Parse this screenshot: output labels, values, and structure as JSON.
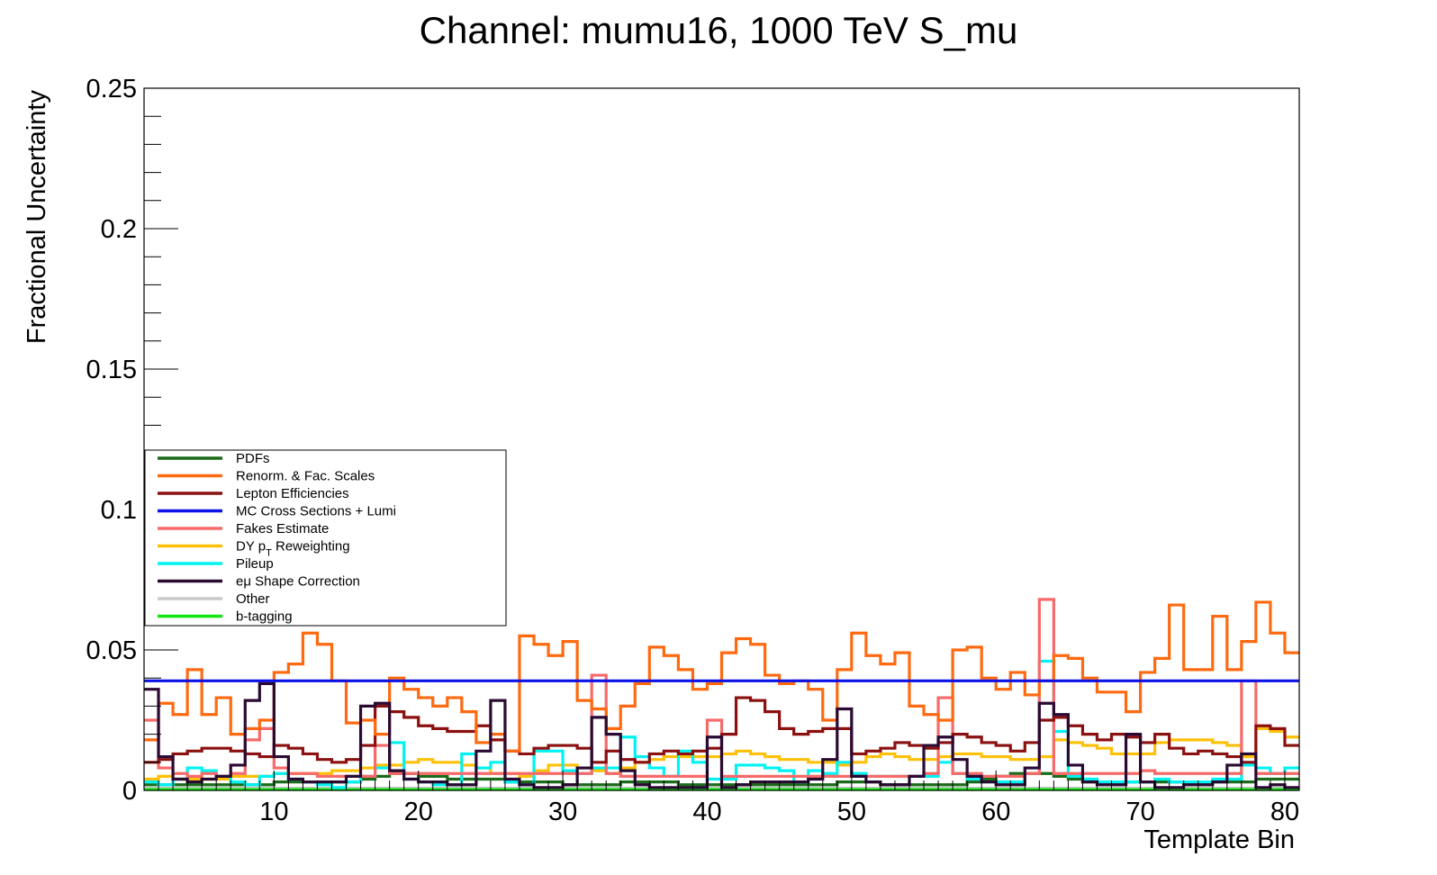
{
  "chart_data": {
    "type": "line",
    "title": "Channel: mumu16, 1000 TeV S_mu",
    "xlabel": "Template Bin",
    "ylabel": "Fractional Uncertainty",
    "xlim": [
      1,
      81
    ],
    "ylim": [
      0,
      0.25
    ],
    "x_ticks": [
      10,
      20,
      30,
      40,
      50,
      60,
      70,
      80
    ],
    "x_tick_labels": [
      "10",
      "20",
      "30",
      "40",
      "50",
      "60",
      "70",
      "80"
    ],
    "y_ticks": [
      0,
      0.05,
      0.1,
      0.15,
      0.2,
      0.25
    ],
    "y_tick_labels": [
      "0",
      "0.05",
      "0.1",
      "0.15",
      "0.2",
      "0.25"
    ],
    "grid": false,
    "legend_position": "left",
    "series": [
      {
        "name": "PDFs",
        "color": "#1a6b1a",
        "values": [
          0.002,
          0.002,
          0.002,
          0.002,
          0.002,
          0.002,
          0.002,
          0.002,
          0.002,
          0.003,
          0.003,
          0.003,
          0.003,
          0.003,
          0.003,
          0.004,
          0.005,
          0.006,
          0.006,
          0.005,
          0.005,
          0.004,
          0.004,
          0.004,
          0.004,
          0.003,
          0.003,
          0.003,
          0.003,
          0.002,
          0.002,
          0.002,
          0.002,
          0.003,
          0.003,
          0.003,
          0.003,
          0.002,
          0.002,
          0.002,
          0.002,
          0.002,
          0.002,
          0.002,
          0.002,
          0.002,
          0.002,
          0.002,
          0.003,
          0.003,
          0.003,
          0.002,
          0.002,
          0.002,
          0.002,
          0.002,
          0.002,
          0.003,
          0.004,
          0.005,
          0.006,
          0.006,
          0.006,
          0.005,
          0.004,
          0.003,
          0.003,
          0.003,
          0.003,
          0.003,
          0.003,
          0.003,
          0.003,
          0.003,
          0.003,
          0.003,
          0.003,
          0.004,
          0.004,
          0.004
        ]
      },
      {
        "name": "Renorm. & Fac. Scales",
        "color": "#ff6a10",
        "values": [
          0.018,
          0.031,
          0.027,
          0.043,
          0.027,
          0.033,
          0.02,
          0.022,
          0.025,
          0.042,
          0.045,
          0.056,
          0.052,
          0.039,
          0.024,
          0.025,
          0.02,
          0.04,
          0.036,
          0.033,
          0.03,
          0.033,
          0.028,
          0.017,
          0.02,
          0.014,
          0.055,
          0.052,
          0.048,
          0.053,
          0.032,
          0.029,
          0.022,
          0.03,
          0.038,
          0.051,
          0.048,
          0.043,
          0.036,
          0.038,
          0.049,
          0.054,
          0.052,
          0.041,
          0.038,
          0.039,
          0.036,
          0.025,
          0.043,
          0.056,
          0.048,
          0.045,
          0.049,
          0.03,
          0.027,
          0.025,
          0.05,
          0.051,
          0.04,
          0.036,
          0.042,
          0.034,
          0.039,
          0.048,
          0.047,
          0.04,
          0.035,
          0.035,
          0.028,
          0.042,
          0.047,
          0.066,
          0.043,
          0.043,
          0.062,
          0.043,
          0.053,
          0.067,
          0.056,
          0.049
        ]
      },
      {
        "name": "Lepton Efficiencies",
        "color": "#8b1010",
        "values": [
          0.01,
          0.011,
          0.013,
          0.014,
          0.015,
          0.015,
          0.014,
          0.013,
          0.012,
          0.016,
          0.015,
          0.013,
          0.011,
          0.01,
          0.011,
          0.016,
          0.03,
          0.028,
          0.026,
          0.023,
          0.022,
          0.021,
          0.021,
          0.023,
          0.018,
          0.014,
          0.013,
          0.015,
          0.016,
          0.016,
          0.015,
          0.01,
          0.014,
          0.011,
          0.01,
          0.013,
          0.014,
          0.013,
          0.014,
          0.015,
          0.02,
          0.033,
          0.032,
          0.028,
          0.022,
          0.02,
          0.021,
          0.022,
          0.022,
          0.013,
          0.014,
          0.015,
          0.017,
          0.016,
          0.015,
          0.017,
          0.02,
          0.019,
          0.017,
          0.016,
          0.014,
          0.017,
          0.025,
          0.026,
          0.023,
          0.02,
          0.018,
          0.02,
          0.019,
          0.017,
          0.02,
          0.015,
          0.013,
          0.014,
          0.013,
          0.012,
          0.01,
          0.023,
          0.022,
          0.016
        ]
      },
      {
        "name": "MC Cross Sections + Lumi",
        "color": "#0a12e6",
        "values": [
          0.039,
          0.039,
          0.039,
          0.039,
          0.039,
          0.039,
          0.039,
          0.039,
          0.039,
          0.039,
          0.039,
          0.039,
          0.039,
          0.039,
          0.039,
          0.039,
          0.039,
          0.039,
          0.039,
          0.039,
          0.039,
          0.039,
          0.039,
          0.039,
          0.039,
          0.039,
          0.039,
          0.039,
          0.039,
          0.039,
          0.039,
          0.039,
          0.039,
          0.039,
          0.039,
          0.039,
          0.039,
          0.039,
          0.039,
          0.039,
          0.039,
          0.039,
          0.039,
          0.039,
          0.039,
          0.039,
          0.039,
          0.039,
          0.039,
          0.039,
          0.039,
          0.039,
          0.039,
          0.039,
          0.039,
          0.039,
          0.039,
          0.039,
          0.039,
          0.039,
          0.039,
          0.039,
          0.039,
          0.039,
          0.039,
          0.039,
          0.039,
          0.039,
          0.039,
          0.039,
          0.039,
          0.039,
          0.039,
          0.039,
          0.039,
          0.039,
          0.039,
          0.039,
          0.039,
          0.039
        ]
      },
      {
        "name": "Fakes Estimate",
        "color": "#f76a6a",
        "values": [
          0.025,
          0.008,
          0.006,
          0.005,
          0.006,
          0.005,
          0.006,
          0.018,
          0.022,
          0.008,
          0.006,
          0.006,
          0.005,
          0.005,
          0.005,
          0.005,
          0.016,
          0.006,
          0.006,
          0.006,
          0.006,
          0.006,
          0.006,
          0.006,
          0.006,
          0.006,
          0.006,
          0.006,
          0.006,
          0.006,
          0.006,
          0.041,
          0.006,
          0.005,
          0.005,
          0.005,
          0.005,
          0.005,
          0.005,
          0.025,
          0.005,
          0.005,
          0.005,
          0.005,
          0.005,
          0.005,
          0.005,
          0.005,
          0.005,
          0.005,
          0.005,
          0.005,
          0.005,
          0.005,
          0.006,
          0.033,
          0.006,
          0.006,
          0.005,
          0.005,
          0.005,
          0.006,
          0.068,
          0.006,
          0.006,
          0.006,
          0.006,
          0.006,
          0.006,
          0.007,
          0.006,
          0.006,
          0.006,
          0.006,
          0.006,
          0.006,
          0.039,
          0.006,
          0.006,
          0.006
        ]
      },
      {
        "name": "DY pT Reweighting",
        "color": "#ffc108",
        "values": [
          0.004,
          0.005,
          0.004,
          0.004,
          0.004,
          0.004,
          0.005,
          0.005,
          0.005,
          0.006,
          0.006,
          0.006,
          0.006,
          0.007,
          0.007,
          0.008,
          0.009,
          0.009,
          0.01,
          0.011,
          0.01,
          0.01,
          0.009,
          0.008,
          0.006,
          0.006,
          0.005,
          0.007,
          0.009,
          0.009,
          0.008,
          0.007,
          0.006,
          0.008,
          0.01,
          0.011,
          0.012,
          0.012,
          0.012,
          0.012,
          0.013,
          0.014,
          0.013,
          0.012,
          0.011,
          0.011,
          0.01,
          0.01,
          0.009,
          0.01,
          0.012,
          0.013,
          0.012,
          0.011,
          0.011,
          0.012,
          0.013,
          0.013,
          0.012,
          0.012,
          0.011,
          0.011,
          0.012,
          0.018,
          0.017,
          0.016,
          0.015,
          0.013,
          0.013,
          0.013,
          0.017,
          0.018,
          0.018,
          0.018,
          0.017,
          0.016,
          0.012,
          0.022,
          0.021,
          0.019
        ]
      },
      {
        "name": "Pileup",
        "color": "#00f2f2",
        "values": [
          0.003,
          0.002,
          0.004,
          0.008,
          0.007,
          0.005,
          0.003,
          0.002,
          0.005,
          0.006,
          0.004,
          0.003,
          0.002,
          0.001,
          0.003,
          0.005,
          0.008,
          0.017,
          0.004,
          0.003,
          0.002,
          0.002,
          0.013,
          0.008,
          0.01,
          0.003,
          0.002,
          0.014,
          0.014,
          0.007,
          0.006,
          0.008,
          0.008,
          0.019,
          0.012,
          0.008,
          0.005,
          0.014,
          0.01,
          0.004,
          0.004,
          0.009,
          0.009,
          0.008,
          0.007,
          0.003,
          0.007,
          0.006,
          0.01,
          0.006,
          0.005,
          0.005,
          0.005,
          0.005,
          0.005,
          0.01,
          0.006,
          0.004,
          0.003,
          0.003,
          0.003,
          0.008,
          0.046,
          0.021,
          0.005,
          0.004,
          0.003,
          0.003,
          0.003,
          0.003,
          0.004,
          0.003,
          0.003,
          0.003,
          0.004,
          0.004,
          0.009,
          0.008,
          0.006,
          0.008
        ]
      },
      {
        "name": "eμ Shape Correction",
        "color": "#2a0a33",
        "values": [
          0.036,
          0.012,
          0.004,
          0.003,
          0.004,
          0.005,
          0.009,
          0.032,
          0.038,
          0.012,
          0.004,
          0.003,
          0.003,
          0.003,
          0.005,
          0.03,
          0.031,
          0.007,
          0.004,
          0.003,
          0.003,
          0.002,
          0.002,
          0.014,
          0.032,
          0.004,
          0.002,
          0.001,
          0.001,
          0.002,
          0.008,
          0.026,
          0.02,
          0.007,
          0.002,
          0.001,
          0.001,
          0.001,
          0.001,
          0.019,
          0.001,
          0.002,
          0.003,
          0.003,
          0.003,
          0.003,
          0.004,
          0.011,
          0.029,
          0.005,
          0.003,
          0.002,
          0.002,
          0.005,
          0.016,
          0.019,
          0.011,
          0.005,
          0.003,
          0.002,
          0.002,
          0.008,
          0.031,
          0.027,
          0.009,
          0.003,
          0.002,
          0.002,
          0.02,
          0.003,
          0.001,
          0.001,
          0.002,
          0.002,
          0.003,
          0.009,
          0.013,
          0.001,
          0.002,
          0.001
        ]
      },
      {
        "name": "Other",
        "color": "#c8c8c8",
        "values": [
          0.0008,
          0.0008,
          0.0008,
          0.0008,
          0.0008,
          0.0008,
          0.0008,
          0.0008,
          0.0008,
          0.0008,
          0.0008,
          0.0008,
          0.0008,
          0.0008,
          0.0008,
          0.0008,
          0.0008,
          0.0008,
          0.0008,
          0.0008,
          0.0008,
          0.0008,
          0.0008,
          0.0008,
          0.0008,
          0.0008,
          0.0008,
          0.0008,
          0.0008,
          0.0008,
          0.0008,
          0.0008,
          0.0008,
          0.0008,
          0.0008,
          0.0008,
          0.0008,
          0.0008,
          0.0008,
          0.0008,
          0.0008,
          0.0008,
          0.0008,
          0.0008,
          0.0008,
          0.0008,
          0.0008,
          0.0008,
          0.0008,
          0.0008,
          0.0008,
          0.0008,
          0.0008,
          0.0008,
          0.0008,
          0.0008,
          0.0008,
          0.0008,
          0.0008,
          0.0008,
          0.0008,
          0.0008,
          0.0008,
          0.0008,
          0.0008,
          0.0008,
          0.0008,
          0.0008,
          0.0008,
          0.0008,
          0.0008,
          0.0008,
          0.0008,
          0.0008,
          0.0008,
          0.0008,
          0.0008,
          0.0008,
          0.0008,
          0.0008
        ]
      },
      {
        "name": "b-tagging",
        "color": "#10e610",
        "values": [
          0.0003,
          0.0003,
          0.0003,
          0.0003,
          0.0003,
          0.0003,
          0.0003,
          0.0003,
          0.0003,
          0.0003,
          0.0003,
          0.0003,
          0.0003,
          0.0003,
          0.0003,
          0.0003,
          0.0003,
          0.0003,
          0.0003,
          0.0003,
          0.0003,
          0.0003,
          0.0003,
          0.0003,
          0.0003,
          0.0003,
          0.0003,
          0.0003,
          0.0003,
          0.0003,
          0.0003,
          0.0003,
          0.0003,
          0.0003,
          0.0003,
          0.0003,
          0.0003,
          0.0003,
          0.0003,
          0.0003,
          0.0003,
          0.0003,
          0.0003,
          0.0003,
          0.0003,
          0.0003,
          0.0003,
          0.0003,
          0.0003,
          0.0003,
          0.0003,
          0.0003,
          0.0003,
          0.0003,
          0.0003,
          0.0003,
          0.0003,
          0.0003,
          0.0003,
          0.0003,
          0.0003,
          0.0003,
          0.0003,
          0.0003,
          0.0003,
          0.0003,
          0.0003,
          0.0003,
          0.0003,
          0.0003,
          0.0003,
          0.0003,
          0.0003,
          0.0003,
          0.0003,
          0.0003,
          0.0003,
          0.0003,
          0.0003,
          0.0003
        ]
      }
    ]
  },
  "legend": {
    "items": [
      {
        "label": "PDFs",
        "color": "#1a6b1a"
      },
      {
        "label": "Renorm. & Fac. Scales",
        "color": "#ff6a10"
      },
      {
        "label": "Lepton Efficiencies",
        "color": "#8b1010"
      },
      {
        "label": "MC Cross Sections + Lumi",
        "color": "#0a12e6"
      },
      {
        "label": "Fakes Estimate",
        "color": "#f76a6a"
      },
      {
        "label": "DY p",
        "sub": "T",
        "after": " Reweighting",
        "color": "#ffc108"
      },
      {
        "label": "Pileup",
        "color": "#00f2f2"
      },
      {
        "label": "eμ Shape Correction",
        "color": "#2a0a33"
      },
      {
        "label": "Other",
        "color": "#c8c8c8"
      },
      {
        "label": "b-tagging",
        "color": "#10e610"
      }
    ]
  }
}
